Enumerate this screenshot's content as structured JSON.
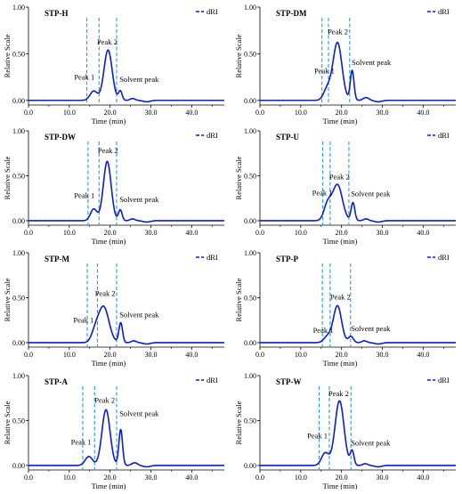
{
  "chart_data": [
    {
      "type": "line",
      "title": "STP-H",
      "legend": "dRI",
      "ylabel": "Relative Scale",
      "xlabel": "Time (min)",
      "xlim": [
        0,
        48
      ],
      "xticks": [
        "0.0",
        "10.0",
        "20.0",
        "30.0",
        "40.0"
      ],
      "ylim": [
        -0.05,
        1.0
      ],
      "yticks": [
        "1.00",
        "0.50",
        "0.00"
      ],
      "vlines": [
        14.3,
        17.3,
        21.6
      ],
      "peaks": [
        {
          "t": 16.0,
          "h": 0.1,
          "w": 0.9
        },
        {
          "t": 19.5,
          "h": 0.54,
          "w": 1.0
        },
        {
          "t": 22.5,
          "h": 0.1,
          "w": 0.45
        },
        {
          "t": 25.5,
          "h": 0.02,
          "w": 0.6
        }
      ],
      "annotations": [
        {
          "text": "Peak 1",
          "x": 11.2,
          "y": 0.22
        },
        {
          "text": "Peak 2",
          "x": 16.8,
          "y": 0.6
        },
        {
          "text": "Solvent peak",
          "x": 22.3,
          "y": 0.2
        }
      ]
    },
    {
      "type": "line",
      "title": "STP-DM",
      "legend": "dRI",
      "ylabel": "Relative Scale",
      "xlabel": "Time (min)",
      "xlim": [
        0,
        48
      ],
      "xticks": [
        "0.0",
        "10.0",
        "20.0",
        "30.0",
        "40.0"
      ],
      "ylim": [
        -0.05,
        1.0
      ],
      "yticks": [
        "1.00",
        "0.50",
        "0.00"
      ],
      "vlines": [
        15.2,
        16.8,
        22.0
      ],
      "peaks": [
        {
          "t": 16.5,
          "h": 0.12,
          "w": 0.9
        },
        {
          "t": 19.0,
          "h": 0.62,
          "w": 1.1
        },
        {
          "t": 22.6,
          "h": 0.32,
          "w": 0.45
        },
        {
          "t": 26.0,
          "h": 0.03,
          "w": 0.7
        }
      ],
      "annotations": [
        {
          "text": "Peak 1",
          "x": 13.3,
          "y": 0.29
        },
        {
          "text": "Peak 2",
          "x": 16.6,
          "y": 0.71
        },
        {
          "text": "Solvent peak",
          "x": 22.5,
          "y": 0.38
        }
      ]
    },
    {
      "type": "line",
      "title": "STP-DW",
      "legend": "dRI",
      "ylabel": "Relative Scale",
      "xlabel": "Time (min)",
      "xlim": [
        0,
        48
      ],
      "xticks": [
        "0.0",
        "10.0",
        "20.0",
        "30.0",
        "40.0"
      ],
      "ylim": [
        -0.05,
        1.0
      ],
      "yticks": [
        "1.00",
        "0.50",
        "0.00"
      ],
      "vlines": [
        14.6,
        17.3,
        21.6
      ],
      "peaks": [
        {
          "t": 16.0,
          "h": 0.13,
          "w": 0.8
        },
        {
          "t": 19.3,
          "h": 0.66,
          "w": 0.95
        },
        {
          "t": 22.5,
          "h": 0.12,
          "w": 0.45
        },
        {
          "t": 25.5,
          "h": 0.02,
          "w": 0.6
        }
      ],
      "annotations": [
        {
          "text": "Peak 1",
          "x": 11.2,
          "y": 0.25
        },
        {
          "text": "Peak 2",
          "x": 17.0,
          "y": 0.75
        },
        {
          "text": "Solvent peak",
          "x": 22.3,
          "y": 0.21
        }
      ]
    },
    {
      "type": "line",
      "title": "STP-U",
      "legend": "dRI",
      "ylabel": "Relative Scale",
      "xlabel": "Time (min)",
      "xlim": [
        0,
        48
      ],
      "xticks": [
        "0.0",
        "10.0",
        "20.0",
        "30.0",
        "40.0"
      ],
      "ylim": [
        -0.05,
        1.0
      ],
      "yticks": [
        "1.00",
        "0.50",
        "0.00"
      ],
      "vlines": [
        15.4,
        17.2,
        21.8
      ],
      "peaks": [
        {
          "t": 16.6,
          "h": 0.18,
          "w": 0.9
        },
        {
          "t": 19.0,
          "h": 0.4,
          "w": 1.2
        },
        {
          "t": 22.8,
          "h": 0.2,
          "w": 0.45
        },
        {
          "t": 26.0,
          "h": 0.02,
          "w": 0.6
        }
      ],
      "annotations": [
        {
          "text": "Peak 1",
          "x": 12.8,
          "y": 0.28
        },
        {
          "text": "Peak 2",
          "x": 17.0,
          "y": 0.46
        },
        {
          "text": "Solvent peak",
          "x": 22.3,
          "y": 0.27
        }
      ]
    },
    {
      "type": "line",
      "title": "STP-M",
      "legend": "dRI",
      "ylabel": "Relative Scale",
      "xlabel": "Time (min)",
      "xlim": [
        0,
        48
      ],
      "xticks": [
        "0.0",
        "10.0",
        "20.0",
        "30.0",
        "40.0"
      ],
      "ylim": [
        -0.05,
        1.0
      ],
      "yticks": [
        "1.00",
        "0.50",
        "0.00"
      ],
      "vlines": [
        14.4,
        16.9,
        21.6
      ],
      "peaks": [
        {
          "t": 16.3,
          "h": 0.1,
          "w": 0.9
        },
        {
          "t": 18.4,
          "h": 0.4,
          "w": 1.3
        },
        {
          "t": 22.6,
          "h": 0.22,
          "w": 0.45
        },
        {
          "t": 25.8,
          "h": 0.02,
          "w": 0.6
        }
      ],
      "annotations": [
        {
          "text": "Peak 1",
          "x": 11.0,
          "y": 0.22
        },
        {
          "text": "Peak 2",
          "x": 16.3,
          "y": 0.52
        },
        {
          "text": "Solvent peak",
          "x": 22.3,
          "y": 0.28
        }
      ]
    },
    {
      "type": "line",
      "title": "STP-P",
      "legend": "dRI",
      "ylabel": "Relative Scale",
      "xlabel": "Time (min)",
      "xlim": [
        0,
        48
      ],
      "xticks": [
        "0.0",
        "10.0",
        "20.0",
        "30.0",
        "40.0"
      ],
      "ylim": [
        -0.05,
        1.0
      ],
      "yticks": [
        "1.00",
        "0.50",
        "0.00"
      ],
      "vlines": [
        15.3,
        17.2,
        22.2
      ],
      "peaks": [
        {
          "t": 16.6,
          "h": 0.07,
          "w": 0.9
        },
        {
          "t": 19.0,
          "h": 0.41,
          "w": 1.0
        },
        {
          "t": 22.3,
          "h": 0.07,
          "w": 0.6
        },
        {
          "t": 25.6,
          "h": 0.02,
          "w": 0.6
        }
      ],
      "annotations": [
        {
          "text": "Peak 1",
          "x": 13.0,
          "y": 0.11
        },
        {
          "text": "Peak 2",
          "x": 17.2,
          "y": 0.48
        },
        {
          "text": "Solvent peak",
          "x": 22.3,
          "y": 0.13
        }
      ]
    },
    {
      "type": "line",
      "title": "STP-A",
      "legend": "dRI",
      "ylabel": "Relative Scale",
      "xlabel": "Time (min)",
      "xlim": [
        0,
        48
      ],
      "xticks": [
        "0.0",
        "10.0",
        "20.0",
        "30.0",
        "40.0"
      ],
      "ylim": [
        -0.05,
        1.0
      ],
      "yticks": [
        "1.00",
        "0.50",
        "0.00"
      ],
      "vlines": [
        13.3,
        16.2,
        21.6
      ],
      "peaks": [
        {
          "t": 14.8,
          "h": 0.1,
          "w": 0.9
        },
        {
          "t": 19.0,
          "h": 0.62,
          "w": 1.0
        },
        {
          "t": 22.6,
          "h": 0.4,
          "w": 0.45
        },
        {
          "t": 26.0,
          "h": 0.03,
          "w": 0.7
        }
      ],
      "annotations": [
        {
          "text": "Peak 1",
          "x": 10.4,
          "y": 0.23
        },
        {
          "text": "Peak 2",
          "x": 16.2,
          "y": 0.7
        },
        {
          "text": "Solvent peak",
          "x": 22.3,
          "y": 0.55
        }
      ]
    },
    {
      "type": "line",
      "title": "STP-W",
      "legend": "dRI",
      "ylabel": "Relative Scale",
      "xlabel": "Time (min)",
      "xlim": [
        0,
        48
      ],
      "xticks": [
        "0.0",
        "10.0",
        "20.0",
        "30.0",
        "40.0"
      ],
      "ylim": [
        -0.05,
        1.0
      ],
      "yticks": [
        "1.00",
        "0.50",
        "0.00"
      ],
      "vlines": [
        14.5,
        17.0,
        22.3
      ],
      "peaks": [
        {
          "t": 16.0,
          "h": 0.14,
          "w": 0.9
        },
        {
          "t": 19.5,
          "h": 0.72,
          "w": 1.1
        },
        {
          "t": 22.6,
          "h": 0.16,
          "w": 0.45
        },
        {
          "t": 25.8,
          "h": 0.02,
          "w": 0.6
        }
      ],
      "annotations": [
        {
          "text": "Peak 1",
          "x": 11.6,
          "y": 0.3
        },
        {
          "text": "Peak 2",
          "x": 16.8,
          "y": 0.77
        },
        {
          "text": "Solvent peak",
          "x": 22.3,
          "y": 0.22
        }
      ]
    }
  ],
  "colors": {
    "trace": "#0c1cd4",
    "guide": "#2b9bd6",
    "axis": "#000000"
  }
}
